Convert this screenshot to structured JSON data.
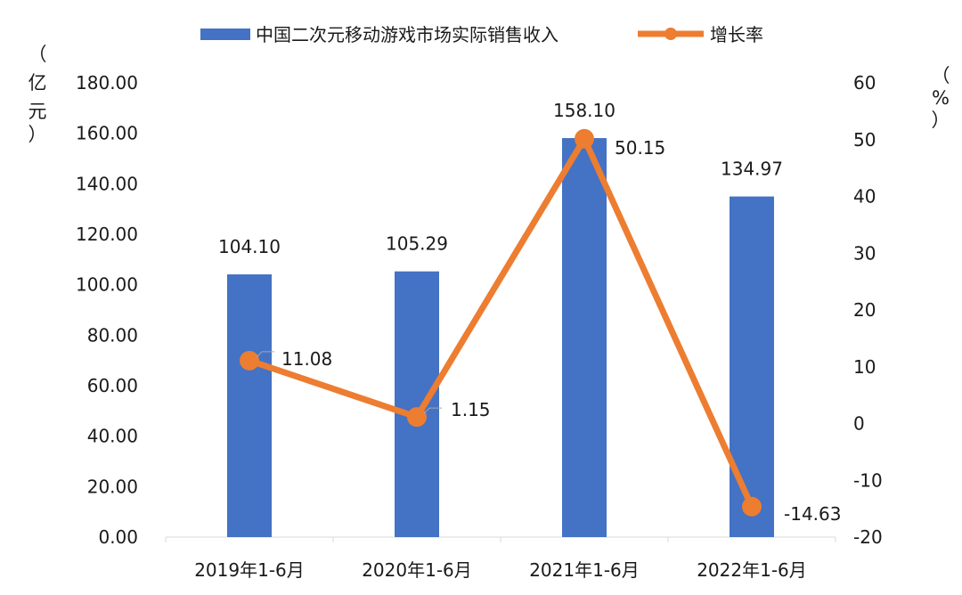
{
  "chart_data": {
    "type": "bar+line",
    "categories": [
      "2019年1-6月",
      "2020年1-6月",
      "2021年1-6月",
      "2022年1-6月"
    ],
    "series": [
      {
        "name": "中国二次元移动游戏市场实际销售收入",
        "type": "bar",
        "axis": "left",
        "color": "#4472C4",
        "values": [
          104.1,
          105.29,
          158.1,
          134.97
        ],
        "labels": [
          "104.10",
          "105.29",
          "158.10",
          "134.97"
        ]
      },
      {
        "name": "增长率",
        "type": "line",
        "axis": "right",
        "color": "#ED7D31",
        "values": [
          11.08,
          1.15,
          50.15,
          -14.63
        ],
        "labels": [
          "11.08",
          "1.15",
          "50.15",
          "-14.63"
        ]
      }
    ],
    "left_axis": {
      "label_chars": [
        "（",
        "亿",
        "元",
        "）"
      ],
      "ylim": [
        0,
        180
      ],
      "ticks": [
        "0.00",
        "20.00",
        "40.00",
        "60.00",
        "80.00",
        "100.00",
        "120.00",
        "140.00",
        "160.00",
        "180.00"
      ]
    },
    "right_axis": {
      "label_chars": [
        "（",
        "%",
        "）"
      ],
      "ylim": [
        -20,
        60
      ],
      "ticks": [
        "-20",
        "-10",
        "0",
        "10",
        "20",
        "30",
        "40",
        "50",
        "60"
      ]
    },
    "legend_position": "top",
    "grid": false
  }
}
